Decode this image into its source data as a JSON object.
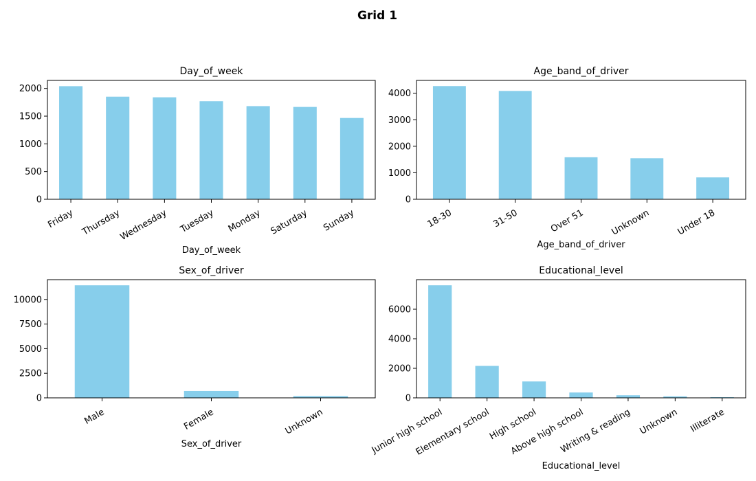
{
  "figure": {
    "title": "Grid 1",
    "bar_color": "#87ceeb"
  },
  "chart_data": [
    {
      "type": "bar",
      "title": "Day_of_week",
      "xlabel": "Day_of_week",
      "ylabel": "",
      "categories": [
        "Friday",
        "Thursday",
        "Wednesday",
        "Tuesday",
        "Monday",
        "Saturday",
        "Sunday"
      ],
      "values": [
        2041,
        1851,
        1840,
        1770,
        1681,
        1666,
        1467
      ],
      "ylim": [
        0,
        2145
      ],
      "yticks": [
        0,
        500,
        1000,
        1500,
        2000
      ],
      "grid": false,
      "legend": "none"
    },
    {
      "type": "bar",
      "title": "Age_band_of_driver",
      "xlabel": "Age_band_of_driver",
      "ylabel": "",
      "categories": [
        "18-30",
        "31-50",
        "Over 51",
        "Unknown",
        "Under 18"
      ],
      "values": [
        4271,
        4087,
        1585,
        1548,
        825
      ],
      "ylim": [
        0,
        4485
      ],
      "yticks": [
        0,
        1000,
        2000,
        3000,
        4000
      ],
      "grid": false,
      "legend": "none"
    },
    {
      "type": "bar",
      "title": "Sex_of_driver",
      "xlabel": "Sex_of_driver",
      "ylabel": "",
      "categories": [
        "Male",
        "Female",
        "Unknown"
      ],
      "values": [
        11437,
        701,
        178
      ],
      "ylim": [
        0,
        12010
      ],
      "yticks": [
        0,
        2500,
        5000,
        7500,
        10000
      ],
      "grid": false,
      "legend": "none"
    },
    {
      "type": "bar",
      "title": "Educational_level",
      "xlabel": "Educational_level",
      "ylabel": "",
      "categories": [
        "Junior high school",
        "Elementary school",
        "High school",
        "Above high school",
        "Writing & reading",
        "Unknown",
        "Illiterate"
      ],
      "values": [
        7619,
        2163,
        1110,
        362,
        176,
        100,
        45
      ],
      "ylim": [
        0,
        8000
      ],
      "yticks": [
        0,
        2000,
        4000,
        6000
      ],
      "grid": false,
      "legend": "none"
    }
  ]
}
